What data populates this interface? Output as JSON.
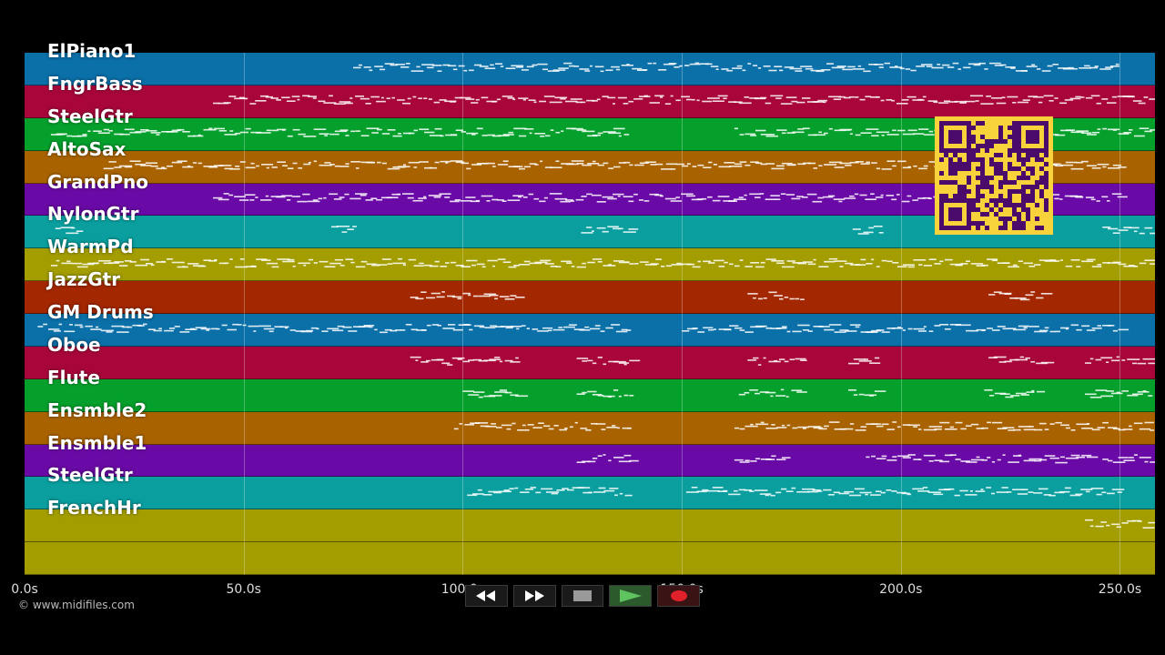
{
  "tracks": [
    {
      "name": "ElPiano1",
      "color": "#0b6fa8"
    },
    {
      "name": "FngrBass",
      "color": "#a8063a"
    },
    {
      "name": "SteelGtr",
      "color": "#05a02c"
    },
    {
      "name": "AltoSax",
      "color": "#a86200"
    },
    {
      "name": "GrandPno",
      "color": "#6a0aa6"
    },
    {
      "name": "NylonGtr",
      "color": "#0a9e9e"
    },
    {
      "name": "WarmPd",
      "color": "#a39d00"
    },
    {
      "name": "JazzGtr",
      "color": "#a32700"
    },
    {
      "name": "GM Drums",
      "color": "#0b6fa8"
    },
    {
      "name": "Oboe",
      "color": "#a8063a"
    },
    {
      "name": "Flute",
      "color": "#05a02c"
    },
    {
      "name": "Ensmble2",
      "color": "#a86200"
    },
    {
      "name": "Ensmble1",
      "color": "#6a0aa6"
    },
    {
      "name": "SteelGtr",
      "color": "#0a9e9e"
    },
    {
      "name": "FrenchHr",
      "color": "#a39d00"
    },
    {
      "name": "",
      "color": "#a39d00"
    }
  ],
  "timeline": {
    "duration_s": 258,
    "ticks": [
      {
        "t": 0,
        "label": "0.0s"
      },
      {
        "t": 50,
        "label": "50.0s"
      },
      {
        "t": 100,
        "label": "100.0s"
      },
      {
        "t": 150,
        "label": "150.0s"
      },
      {
        "t": 200,
        "label": "200.0s"
      },
      {
        "t": 250,
        "label": "250.0s"
      }
    ]
  },
  "copyright": "© www.midifiles.com",
  "transport": {
    "rewind_icon": "rewind-icon",
    "forward_icon": "fast-forward-icon",
    "stop_icon": "stop-icon",
    "play_icon": "play-icon",
    "record_icon": "record-icon",
    "colors": {
      "play": "#4caf50",
      "record": "#e0202a",
      "stop": "#9a9a9a"
    }
  }
}
